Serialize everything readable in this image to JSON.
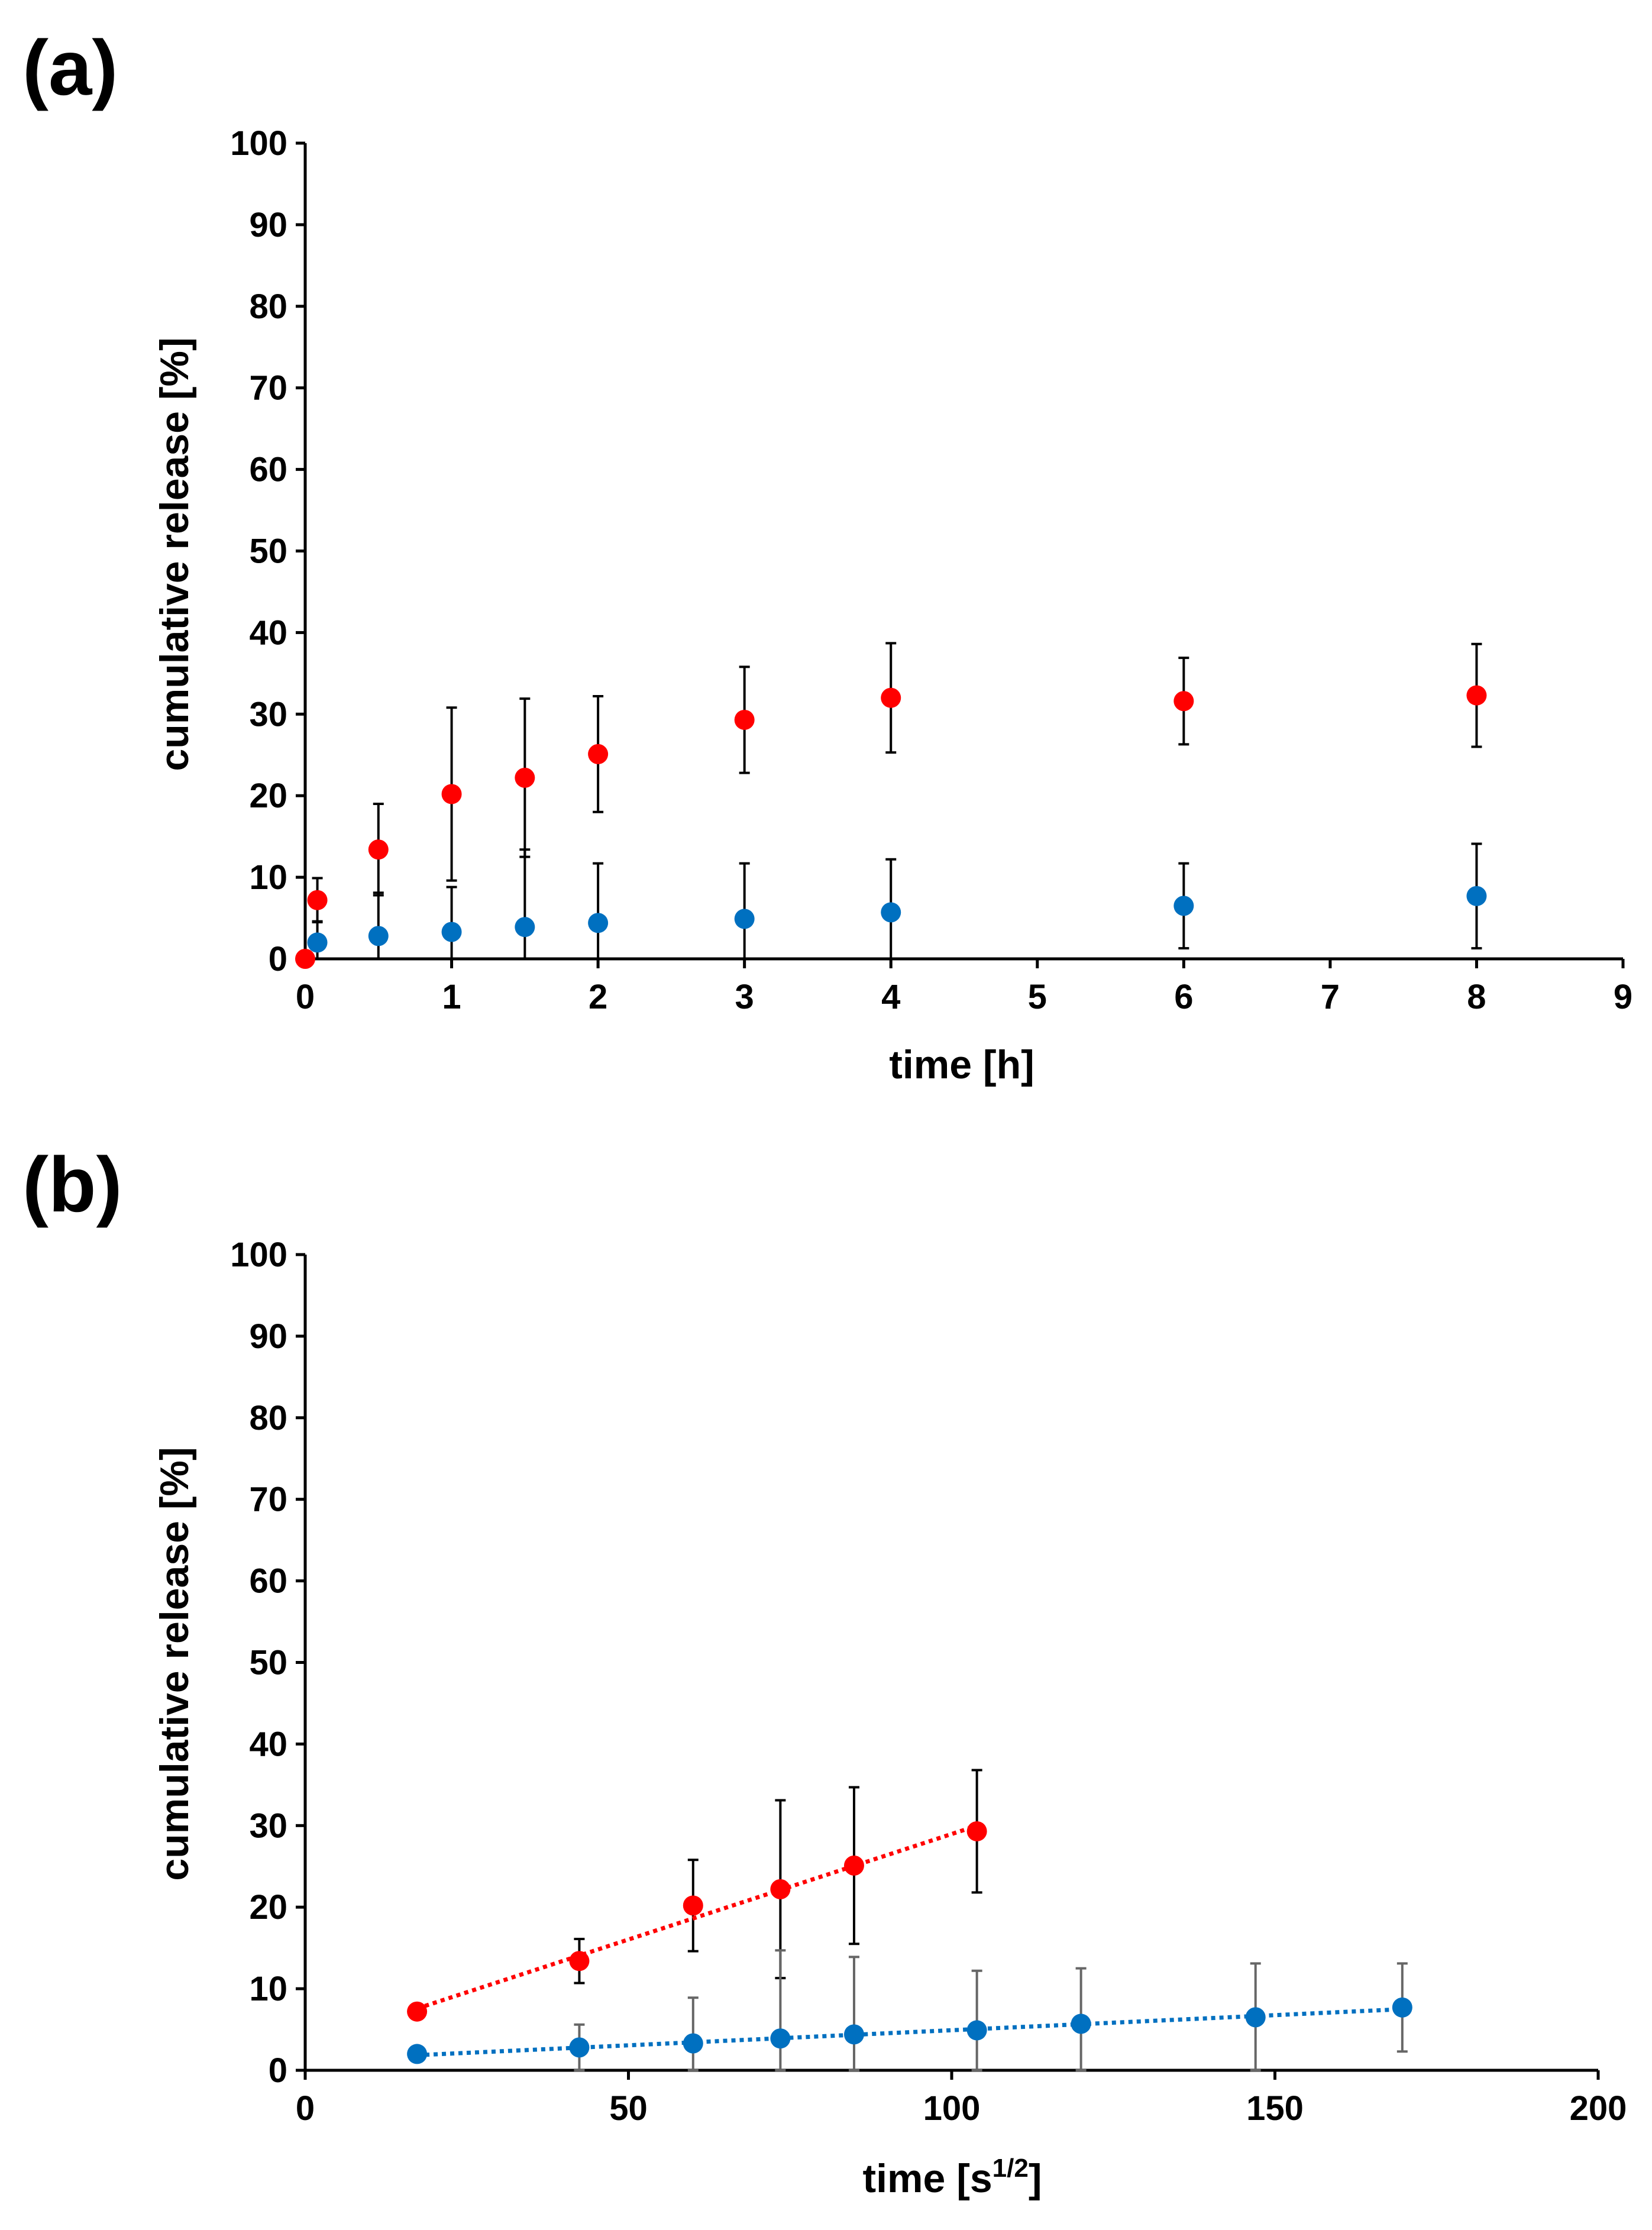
{
  "chart_data": [
    {
      "panel_label": "(a)",
      "type": "scatter",
      "xlabel": "time [h]",
      "ylabel": "cumulative release [%]",
      "xlim": [
        0,
        9
      ],
      "ylim": [
        0,
        100
      ],
      "xticks": [
        0,
        1,
        2,
        3,
        4,
        5,
        6,
        7,
        8,
        9
      ],
      "yticks": [
        0,
        10,
        20,
        30,
        40,
        50,
        60,
        70,
        80,
        90,
        100
      ],
      "grid": false,
      "series": [
        {
          "name": "red",
          "color": "#ff0000",
          "trendline": false,
          "x": [
            0,
            0.083,
            0.5,
            1,
            1.5,
            2,
            3,
            4,
            6,
            8
          ],
          "y": [
            0,
            7.2,
            13.4,
            20.2,
            22.2,
            25.1,
            29.3,
            32.0,
            31.6,
            32.3
          ],
          "err": [
            0,
            2.7,
            5.6,
            10.6,
            9.7,
            7.1,
            6.5,
            6.7,
            5.3,
            6.3
          ]
        },
        {
          "name": "blue",
          "color": "#0070c0",
          "trendline": false,
          "x": [
            0.083,
            0.5,
            1,
            1.5,
            2,
            3,
            4,
            6,
            8
          ],
          "y": [
            2.0,
            2.8,
            3.3,
            3.9,
            4.4,
            4.9,
            5.7,
            6.5,
            7.7
          ],
          "err": [
            2.6,
            5.3,
            5.5,
            9.5,
            7.3,
            6.8,
            6.5,
            5.2,
            6.4
          ]
        }
      ]
    },
    {
      "panel_label": "(b)",
      "type": "scatter",
      "xlabel": "time [s",
      "xlabel_sup": "1/2",
      "xlabel_end": "]",
      "ylabel": "cumulative release [%]",
      "xlim": [
        0,
        200
      ],
      "ylim": [
        0,
        100
      ],
      "xticks": [
        0,
        50,
        100,
        150,
        200
      ],
      "yticks": [
        0,
        10,
        20,
        30,
        40,
        50,
        60,
        70,
        80,
        90,
        100
      ],
      "grid": false,
      "series": [
        {
          "name": "red",
          "color": "#ff0000",
          "trendline": true,
          "x": [
            17.3,
            42.4,
            60,
            73.5,
            84.9,
            103.9
          ],
          "y": [
            7.2,
            13.4,
            20.2,
            22.2,
            25.1,
            29.3
          ],
          "err": [
            0,
            2.7,
            5.6,
            10.9,
            9.6,
            7.5
          ]
        },
        {
          "name": "blue",
          "color": "#0070c0",
          "trendline": true,
          "x": [
            17.3,
            42.4,
            60,
            73.5,
            84.9,
            103.9,
            120,
            147,
            169.7
          ],
          "y": [
            2.0,
            2.8,
            3.3,
            3.9,
            4.4,
            4.9,
            5.7,
            6.5,
            7.7
          ],
          "err": [
            0,
            2.8,
            5.6,
            10.8,
            9.5,
            7.3,
            6.8,
            6.6,
            5.4
          ]
        }
      ]
    }
  ]
}
